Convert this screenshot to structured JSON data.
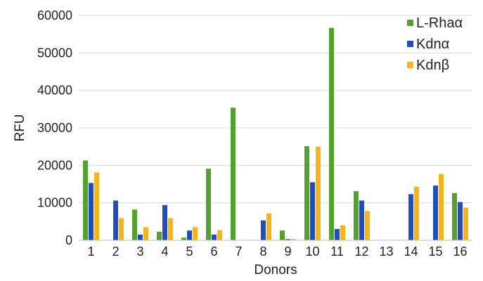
{
  "chart_data": {
    "type": "bar",
    "xlabel": "Donors",
    "ylabel": "RFU",
    "ylim": [
      0,
      60000
    ],
    "yticks": [
      0,
      10000,
      20000,
      30000,
      40000,
      50000,
      60000
    ],
    "grid": true,
    "legend_position": "top-right",
    "categories": [
      "1",
      "2",
      "3",
      "4",
      "5",
      "6",
      "7",
      "8",
      "9",
      "10",
      "11",
      "12",
      "13",
      "14",
      "15",
      "16"
    ],
    "series": [
      {
        "name": "L-Rhaα",
        "color": "#55a130",
        "values": [
          21300,
          0,
          8200,
          2300,
          700,
          19100,
          35400,
          0,
          2600,
          25100,
          56700,
          13100,
          0,
          0,
          0,
          12600
        ]
      },
      {
        "name": "Kdnα",
        "color": "#1f4fbf",
        "values": [
          15300,
          10600,
          1500,
          9400,
          2600,
          1500,
          0,
          5300,
          300,
          15500,
          3000,
          10600,
          0,
          12300,
          14600,
          10200
        ]
      },
      {
        "name": "Kdnβ",
        "color": "#f7b519",
        "values": [
          18100,
          5900,
          3500,
          5900,
          3500,
          2700,
          0,
          7200,
          300,
          25000,
          4000,
          7800,
          0,
          14300,
          17700,
          8700
        ]
      }
    ]
  }
}
